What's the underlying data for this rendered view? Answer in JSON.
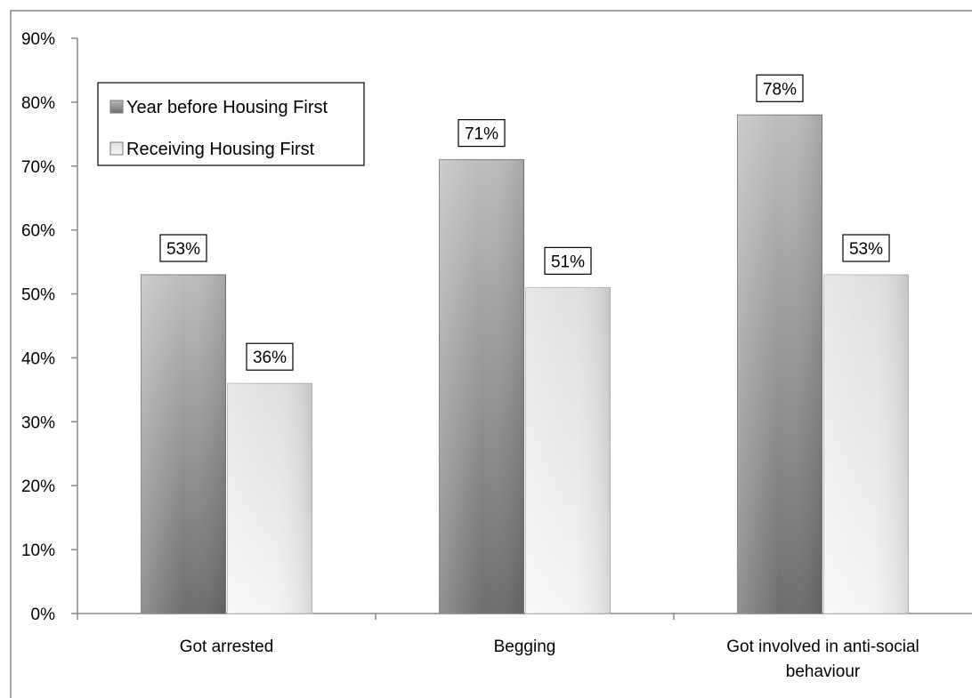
{
  "chart_data": {
    "type": "bar",
    "categories": [
      "Got arrested",
      "Begging",
      "Got involved in anti-social behaviour"
    ],
    "category_lines": [
      [
        "Got arrested"
      ],
      [
        "Begging"
      ],
      [
        "Got involved in anti-social",
        "behaviour"
      ]
    ],
    "series": [
      {
        "name": "Year before Housing First",
        "values": [
          53,
          71,
          78
        ],
        "color": "#8c8c8c"
      },
      {
        "name": "Receiving Housing First",
        "values": [
          36,
          51,
          53
        ],
        "color": "#d0d0d0"
      }
    ],
    "data_labels": [
      [
        "53%",
        "71%",
        "78%"
      ],
      [
        "36%",
        "51%",
        "53%"
      ]
    ],
    "yticks": [
      "0%",
      "10%",
      "20%",
      "30%",
      "40%",
      "50%",
      "60%",
      "70%",
      "80%",
      "90%"
    ],
    "ylim": [
      0,
      90
    ],
    "title": "",
    "xlabel": "",
    "ylabel": "",
    "legend_position": "top-left",
    "grid": false
  }
}
